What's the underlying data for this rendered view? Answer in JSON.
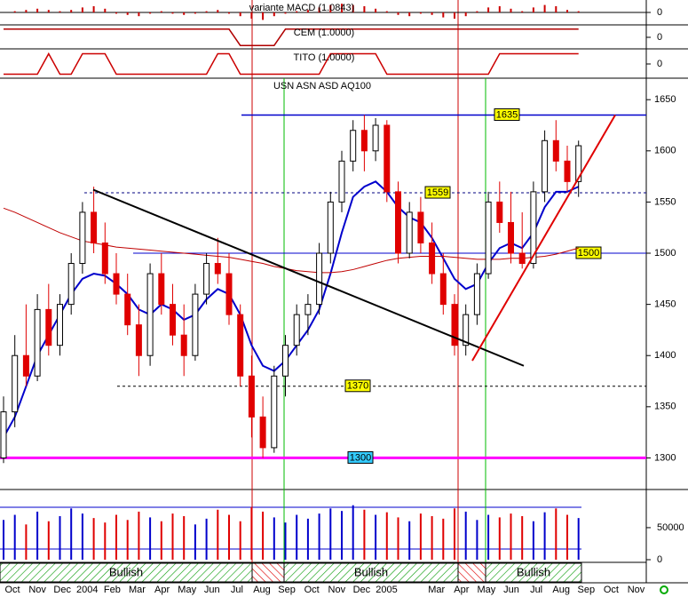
{
  "chart_data": [
    {
      "type": "bar",
      "title": "variante MACD (1.0843)",
      "color": "#cc0000",
      "ylim": [
        -1,
        1
      ],
      "yticks": [
        0
      ],
      "values": [
        0,
        0.1,
        0.2,
        0.3,
        0.2,
        0.1,
        0.2,
        0.4,
        0.5,
        0.3,
        -0.1,
        -0.2,
        -0.3,
        -0.1,
        0.1,
        -0.1,
        -0.2,
        -0.1,
        0.1,
        0.2,
        -0.1,
        -0.3,
        -0.5,
        -0.6,
        -0.3,
        -0.1,
        0.1,
        0.2,
        0.4,
        0.6,
        0.7,
        0.6,
        0.5,
        0.3,
        0.1,
        -0.2,
        -0.3,
        -0.1,
        -0.2,
        -0.4,
        -0.5,
        -0.3,
        0.1,
        0.4,
        0.5,
        0.3,
        0.1,
        0.4,
        0.6,
        0.5,
        0.2,
        0.1
      ]
    },
    {
      "type": "line",
      "title": "CEM (1.0000)",
      "color": "#b00000",
      "ylim": [
        -1.3,
        1.3
      ],
      "yticks": [
        0
      ],
      "values": [
        1,
        1,
        1,
        1,
        1,
        1,
        1,
        1,
        1,
        1,
        1,
        1,
        1,
        1,
        1,
        1,
        1,
        1,
        1,
        1,
        1,
        -1,
        -1,
        -1,
        -1,
        1,
        1,
        1,
        1,
        1,
        1,
        1,
        1,
        1,
        1,
        1,
        1,
        1,
        1,
        1,
        1,
        1,
        1,
        1,
        1,
        1,
        1,
        1,
        1,
        1,
        1,
        1
      ]
    },
    {
      "type": "line",
      "title": "TITO (1.0000)",
      "color": "#cc0000",
      "ylim": [
        -1.3,
        1.3
      ],
      "yticks": [
        0
      ],
      "values": [
        -1,
        -1,
        -1,
        -1,
        1,
        -1,
        -1,
        1,
        1,
        1,
        -1,
        -1,
        -1,
        -1,
        -1,
        -1,
        -1,
        -1,
        -1,
        1,
        1,
        -1,
        -1,
        -1,
        -1,
        -1,
        -1,
        -1,
        -1,
        1,
        1,
        1,
        1,
        1,
        -1,
        -1,
        -1,
        -1,
        -1,
        -1,
        -1,
        -1,
        -1,
        -1,
        1,
        1,
        1,
        1,
        1,
        1,
        1,
        1
      ]
    },
    {
      "type": "candlestick",
      "title": "USN ASN ASD AQ100",
      "up_color": "#ffffff",
      "down_color": "#e00000",
      "ylim": [
        1270,
        1671
      ],
      "yticks": [
        1300,
        1350,
        1400,
        1450,
        1500,
        1550,
        1600,
        1650
      ],
      "open": [
        1300,
        1345,
        1400,
        1380,
        1445,
        1410,
        1450,
        1490,
        1540,
        1510,
        1480,
        1460,
        1430,
        1400,
        1480,
        1450,
        1420,
        1400,
        1460,
        1490,
        1480,
        1440,
        1380,
        1340,
        1310,
        1380,
        1410,
        1440,
        1450,
        1500,
        1550,
        1590,
        1620,
        1600,
        1625,
        1560,
        1500,
        1540,
        1510,
        1480,
        1450,
        1410,
        1440,
        1480,
        1550,
        1530,
        1500,
        1490,
        1560,
        1610,
        1590,
        1570
      ],
      "high": [
        1360,
        1420,
        1450,
        1460,
        1470,
        1460,
        1500,
        1550,
        1565,
        1530,
        1500,
        1480,
        1450,
        1490,
        1500,
        1470,
        1450,
        1470,
        1500,
        1515,
        1500,
        1450,
        1400,
        1360,
        1390,
        1420,
        1450,
        1460,
        1510,
        1560,
        1600,
        1630,
        1635,
        1632,
        1630,
        1570,
        1550,
        1555,
        1530,
        1500,
        1460,
        1450,
        1490,
        1560,
        1570,
        1560,
        1540,
        1570,
        1620,
        1630,
        1605,
        1610
      ],
      "low": [
        1295,
        1330,
        1370,
        1375,
        1400,
        1400,
        1440,
        1480,
        1500,
        1470,
        1450,
        1420,
        1380,
        1390,
        1440,
        1410,
        1380,
        1395,
        1450,
        1470,
        1430,
        1370,
        1320,
        1300,
        1305,
        1360,
        1400,
        1420,
        1440,
        1490,
        1540,
        1580,
        1580,
        1590,
        1550,
        1490,
        1495,
        1500,
        1470,
        1440,
        1400,
        1400,
        1430,
        1475,
        1520,
        1490,
        1485,
        1485,
        1550,
        1580,
        1560,
        1555
      ],
      "close": [
        1345,
        1400,
        1380,
        1445,
        1410,
        1450,
        1490,
        1540,
        1510,
        1480,
        1460,
        1430,
        1400,
        1480,
        1450,
        1420,
        1400,
        1460,
        1490,
        1480,
        1440,
        1380,
        1340,
        1310,
        1380,
        1410,
        1440,
        1450,
        1500,
        1550,
        1590,
        1620,
        1600,
        1625,
        1560,
        1500,
        1540,
        1510,
        1480,
        1450,
        1410,
        1440,
        1480,
        1550,
        1530,
        1500,
        1490,
        1560,
        1610,
        1590,
        1570,
        1605
      ],
      "lines": [
        {
          "color": "#0000cc",
          "values": [
            1320,
            1340,
            1370,
            1400,
            1420,
            1440,
            1460,
            1475,
            1480,
            1478,
            1470,
            1460,
            1445,
            1440,
            1450,
            1445,
            1435,
            1440,
            1455,
            1465,
            1460,
            1440,
            1410,
            1390,
            1385,
            1395,
            1410,
            1425,
            1445,
            1480,
            1520,
            1555,
            1565,
            1570,
            1560,
            1545,
            1535,
            1530,
            1515,
            1495,
            1475,
            1465,
            1470,
            1490,
            1505,
            1510,
            1505,
            1520,
            1545,
            1560,
            1560,
            1565
          ]
        },
        {
          "color": "#c00000",
          "values": [
            1544,
            1540,
            1535,
            1530,
            1525,
            1520,
            1516,
            1512,
            1510,
            1508,
            1506,
            1505,
            1504,
            1503,
            1502,
            1501,
            1500,
            1499,
            1498,
            1497,
            1496,
            1494,
            1492,
            1490,
            1487,
            1485,
            1483,
            1482,
            1481,
            1481,
            1482,
            1484,
            1487,
            1490,
            1493,
            1495,
            1496,
            1497,
            1497,
            1497,
            1496,
            1495,
            1494,
            1494,
            1494,
            1495,
            1495,
            1496,
            1497,
            1499,
            1502,
            1505
          ]
        }
      ],
      "levels": [
        {
          "value": 1635,
          "color": "#0000cc"
        },
        {
          "value": 1559,
          "color": "#000080"
        },
        {
          "value": 1500,
          "color": "#0000cc"
        },
        {
          "value": 1370,
          "color": "#000000"
        },
        {
          "value": 1300,
          "color": "#ff00ff"
        }
      ],
      "trendlines": [
        {
          "color": "#000000",
          "values": [
            1562,
            1390
          ]
        },
        {
          "color": "#e00000",
          "values": [
            1395,
            1635
          ]
        }
      ],
      "regimes": [
        "Bullish",
        "Bullish",
        "Bullish"
      ],
      "x_labels": [
        "Oct",
        "Nov",
        "Dec",
        "2004",
        "Feb",
        "Mar",
        "Apr",
        "May",
        "Jun",
        "Jul",
        "Aug",
        "Sep",
        "Oct",
        "Nov",
        "Dec",
        "2005",
        null,
        "Mar",
        "Apr",
        "May",
        "Jun",
        "Jul",
        "Aug",
        "Sep",
        "Oct",
        "Nov"
      ]
    },
    {
      "type": "volume",
      "up_color": "#0000cc",
      "down_color": "#e00000",
      "ylim": [
        0,
        104000
      ],
      "yticks": [
        0,
        50000
      ],
      "values": [
        62000,
        70000,
        55000,
        75000,
        60000,
        68000,
        80000,
        72000,
        65000,
        58000,
        70000,
        62000,
        75000,
        66000,
        60000,
        72000,
        68000,
        55000,
        64000,
        78000,
        70000,
        60000,
        82000,
        75000,
        66000,
        58000,
        70000,
        64000,
        72000,
        80000,
        76000,
        85000,
        78000,
        70000,
        74000,
        66000,
        60000,
        72000,
        68000,
        64000,
        80000,
        75000,
        62000,
        70000,
        66000,
        72000,
        68000,
        60000,
        74000,
        80000,
        70000,
        65000
      ]
    }
  ]
}
